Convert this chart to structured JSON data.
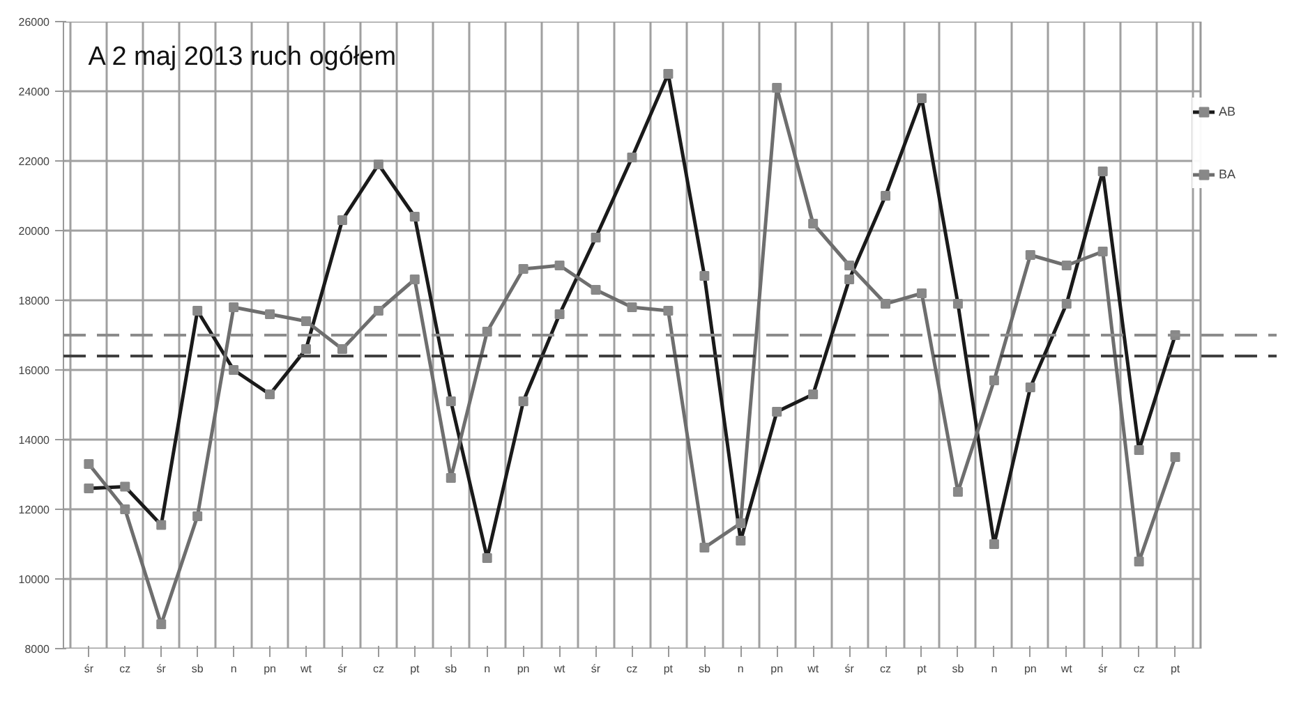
{
  "chart_data": {
    "type": "line",
    "title": "A 2 maj 2013 ruch ogółem",
    "categories": [
      "śr",
      "cz",
      "śr",
      "sb",
      "n",
      "pn",
      "wt",
      "śr",
      "cz",
      "pt",
      "sb",
      "n",
      "pn",
      "wt",
      "śr",
      "cz",
      "pt",
      "sb",
      "n",
      "pn",
      "wt",
      "śr",
      "cz",
      "pt",
      "sb",
      "n",
      "pn",
      "wt",
      "śr",
      "cz",
      "pt"
    ],
    "series": [
      {
        "name": "AB",
        "color": "#1a1a1a",
        "values": [
          12600,
          12650,
          11550,
          17700,
          16000,
          15300,
          16600,
          20300,
          21900,
          20400,
          15100,
          10600,
          15100,
          17600,
          19800,
          22100,
          24500,
          18700,
          11100,
          14800,
          15300,
          18600,
          21000,
          23800,
          17900,
          11000,
          15500,
          17900,
          21700,
          13700,
          17000
        ]
      },
      {
        "name": "BA",
        "color": "#6e6e6e",
        "values": [
          13300,
          12000,
          8700,
          11800,
          17800,
          17600,
          17400,
          16600,
          17700,
          18600,
          12900,
          17100,
          18900,
          19000,
          18300,
          17800,
          17700,
          10900,
          11600,
          24100,
          20200,
          19000,
          17900,
          18200,
          12500,
          15700,
          19300,
          19000,
          19400,
          10500,
          13500
        ]
      }
    ],
    "ylim": [
      8000,
      26000
    ],
    "yticks": [
      8000,
      10000,
      12000,
      14000,
      16000,
      18000,
      20000,
      22000,
      24000,
      26000
    ],
    "ref_lines": [
      {
        "axis": "y",
        "value": 17000,
        "color": "#8c8c8c",
        "line_style": "dashed"
      },
      {
        "axis": "y",
        "value": 16400,
        "color": "#404040",
        "line_style": "dashed"
      }
    ],
    "grid": true,
    "legend": "right",
    "marker": "square",
    "line_style": "solid"
  }
}
